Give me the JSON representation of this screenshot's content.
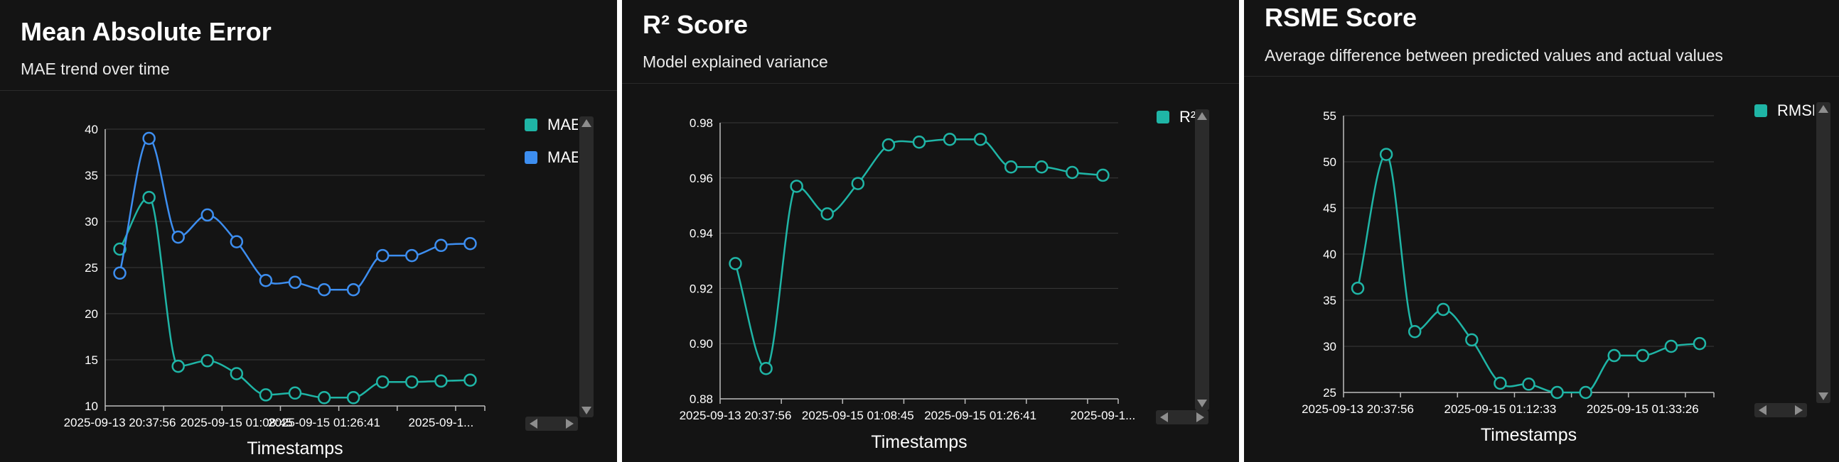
{
  "colors": {
    "background": "#141414",
    "teal": "#1fb5a6",
    "blue": "#3d8ef0",
    "grid": "#3a3a3a",
    "axis": "#bdbdbd"
  },
  "icons": {
    "legend": "square-swatch",
    "scroll": "triangle-arrows"
  },
  "chart_data": [
    {
      "type": "line",
      "title": "Mean Absolute Error",
      "subtitle": "MAE trend over time",
      "xlabel": "Timestamps",
      "ylabel": "",
      "ylim": [
        10,
        40
      ],
      "yticks": [
        10,
        15,
        20,
        25,
        30,
        35,
        40
      ],
      "xtick_labels": [
        "2025-09-13 20:37:56",
        "2025-09-15 01:08:45",
        "2025-09-15 01:26:41",
        "2025-09-1..."
      ],
      "grid": true,
      "legend": "right",
      "series": [
        {
          "name": "MAE",
          "color": "#1fb5a6",
          "values": [
            27.0,
            32.6,
            14.3,
            14.9,
            13.5,
            11.2,
            11.4,
            10.9,
            10.9,
            12.6,
            12.6,
            12.7,
            12.8
          ]
        },
        {
          "name": "MAE",
          "color": "#3d8ef0",
          "values": [
            24.4,
            39.0,
            28.3,
            30.7,
            27.8,
            23.6,
            23.4,
            22.6,
            22.6,
            26.3,
            26.3,
            27.4,
            27.6
          ]
        }
      ]
    },
    {
      "type": "line",
      "title": "R² Score",
      "subtitle": "Model explained variance",
      "xlabel": "Timestamps",
      "ylabel": "",
      "ylim": [
        0.88,
        0.98
      ],
      "yticks": [
        0.88,
        0.9,
        0.92,
        0.94,
        0.96,
        0.98
      ],
      "xtick_labels": [
        "2025-09-13 20:37:56",
        "2025-09-15 01:08:45",
        "2025-09-15 01:26:41",
        "2025-09-1..."
      ],
      "grid": true,
      "legend": "right",
      "series": [
        {
          "name": "R²",
          "color": "#1fb5a6",
          "values": [
            0.929,
            0.891,
            0.957,
            0.947,
            0.958,
            0.972,
            0.973,
            0.974,
            0.974,
            0.964,
            0.964,
            0.962,
            0.961
          ]
        }
      ]
    },
    {
      "type": "line",
      "title": "RSME Score",
      "subtitle": "Average difference between predicted values and actual values",
      "xlabel": "Timestamps",
      "ylabel": "",
      "ylim": [
        25,
        55
      ],
      "yticks": [
        25,
        30,
        35,
        40,
        45,
        50,
        55
      ],
      "xtick_labels": [
        "2025-09-13 20:37:56",
        "2025-09-15 01:12:33",
        "2025-09-15 01:33:26"
      ],
      "grid": true,
      "legend": "right",
      "series": [
        {
          "name": "RMSE",
          "color": "#1fb5a6",
          "values": [
            36.3,
            50.8,
            31.6,
            34.0,
            30.7,
            26.0,
            25.9,
            25.0,
            25.0,
            29.0,
            29.0,
            30.0,
            30.3
          ]
        }
      ]
    }
  ]
}
